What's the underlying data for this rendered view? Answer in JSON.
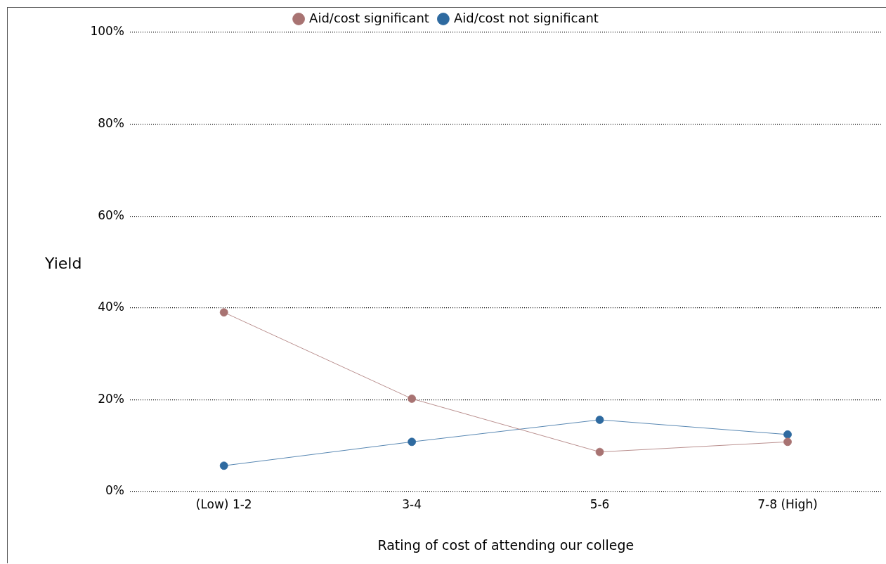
{
  "chart_data": {
    "type": "line",
    "xlabel": "Rating of cost of attending our college",
    "ylabel": "Yield",
    "categories": [
      "(Low) 1-2",
      "3-4",
      "5-6",
      "7-8 (High)"
    ],
    "series": [
      {
        "name": "Aid/cost significant",
        "color": "#a87372",
        "values": [
          39.0,
          20.2,
          8.6,
          10.8
        ]
      },
      {
        "name": "Aid/cost not significant",
        "color": "#2e6aa0",
        "values": [
          5.6,
          10.8,
          15.6,
          12.4
        ]
      }
    ],
    "ylim": [
      0,
      100
    ],
    "yticks": [
      {
        "value": 0,
        "label": "0%"
      },
      {
        "value": 20,
        "label": "20%"
      },
      {
        "value": 40,
        "label": "40%"
      },
      {
        "value": 60,
        "label": "60%"
      },
      {
        "value": 80,
        "label": "80%"
      },
      {
        "value": 100,
        "label": "100%"
      }
    ],
    "grid": "y",
    "legend": "top",
    "marker": "circle",
    "line_style": "solid"
  }
}
